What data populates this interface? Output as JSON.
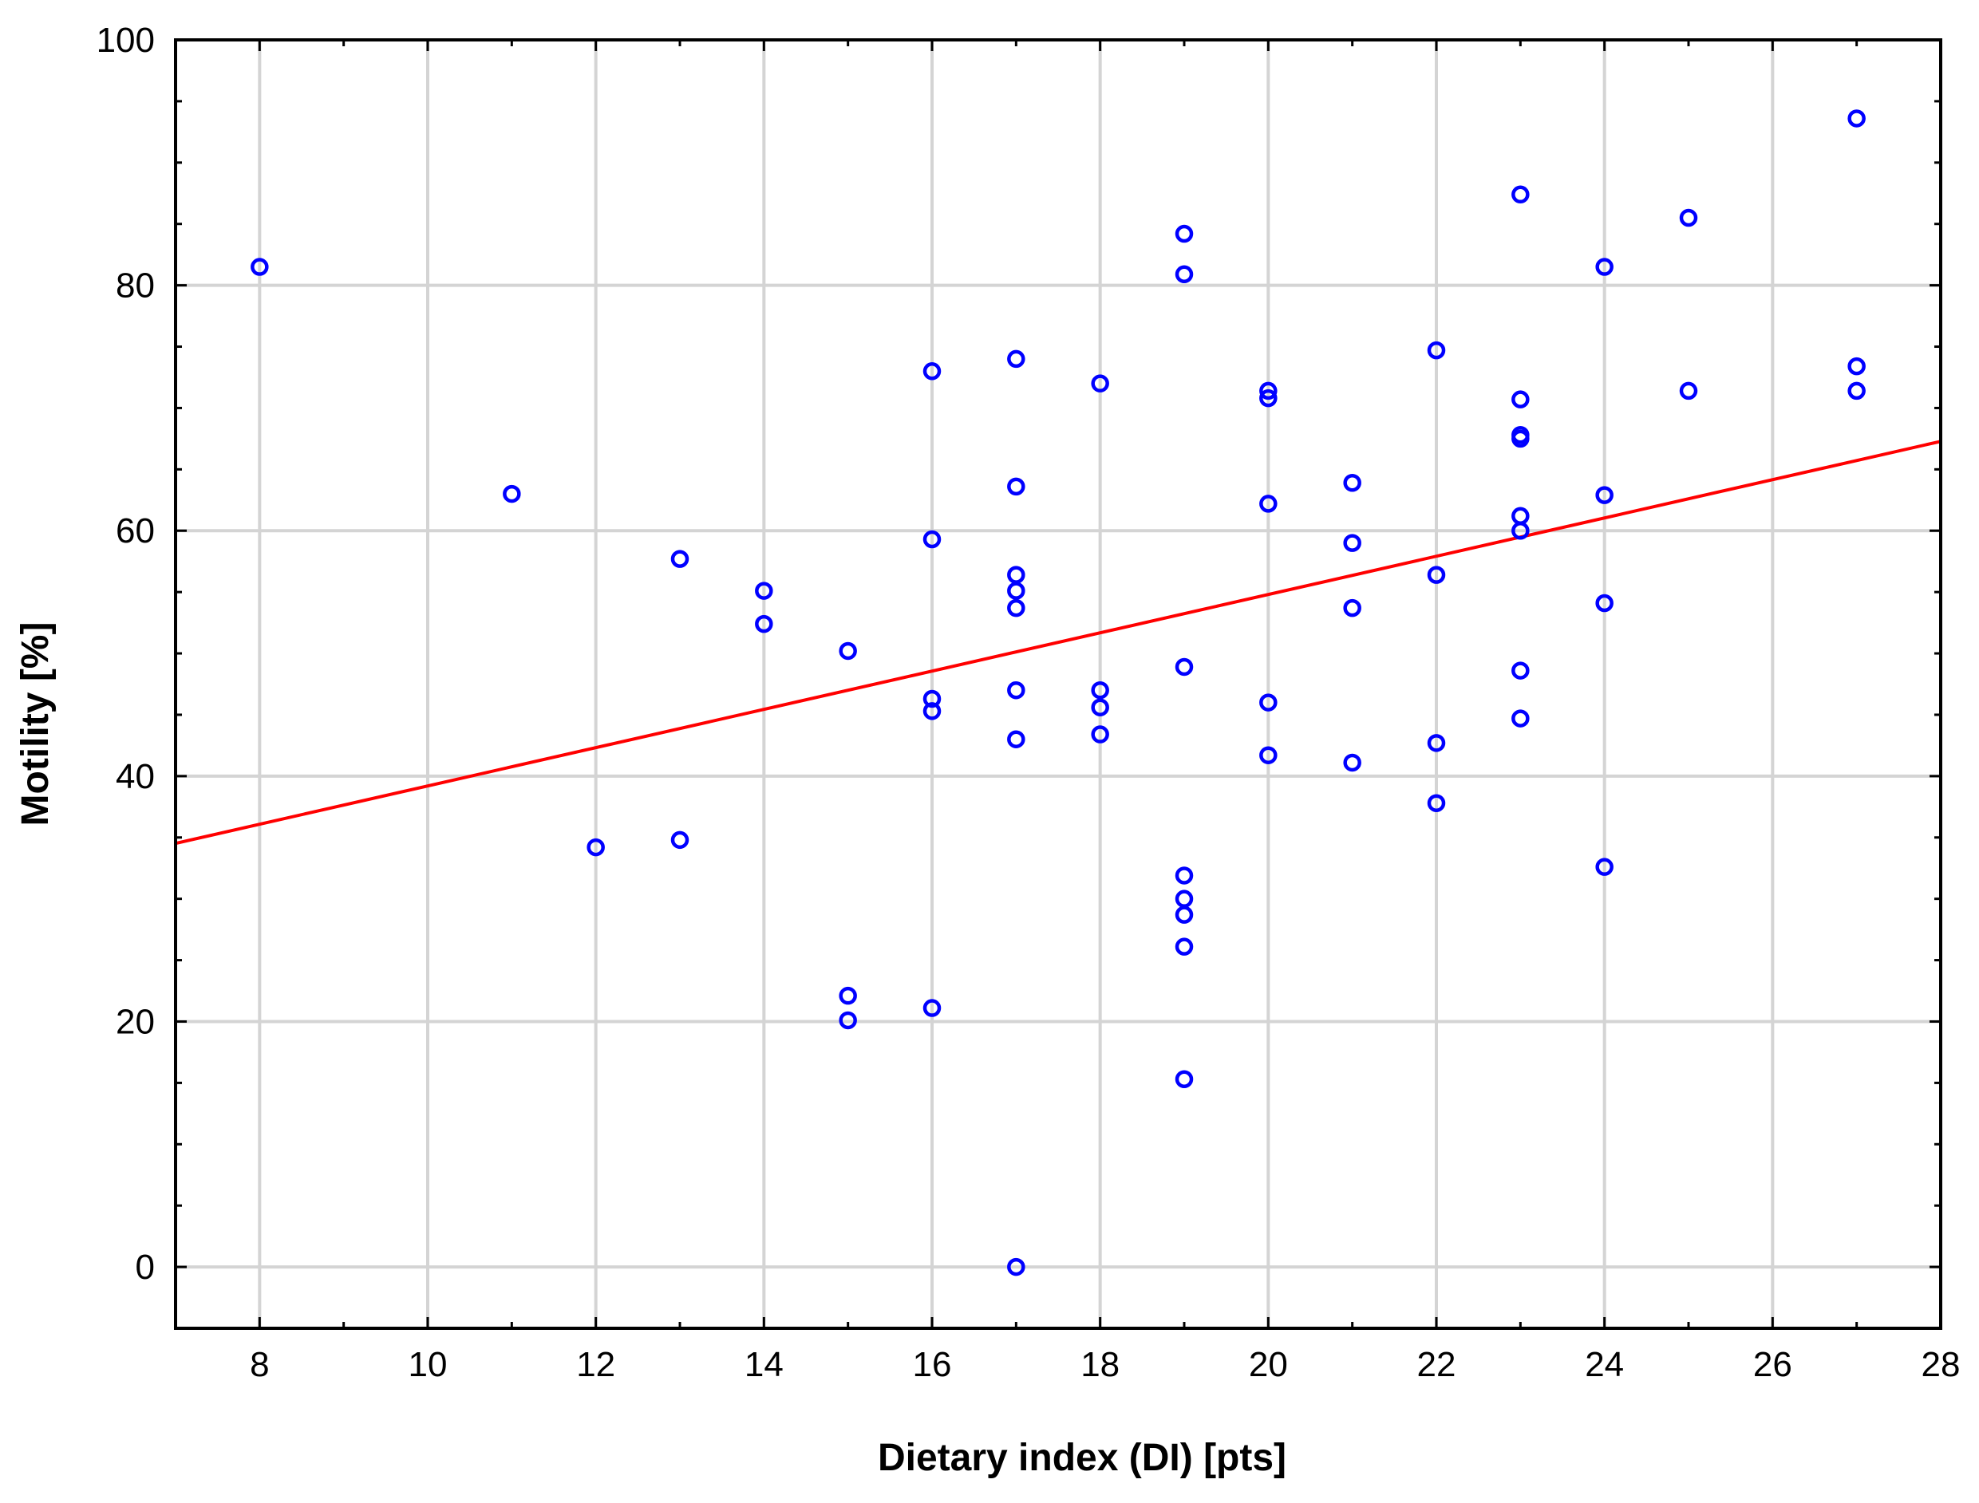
{
  "chart_data": {
    "type": "scatter",
    "title": "",
    "xlabel": "Dietary index (DI) [pts]",
    "ylabel": "Motility [%]",
    "xlim": [
      7,
      28
    ],
    "ylim": [
      -5,
      100
    ],
    "xticks": [
      8,
      10,
      12,
      14,
      16,
      18,
      20,
      22,
      24,
      26,
      28
    ],
    "yticks": [
      0,
      20,
      40,
      60,
      80,
      100
    ],
    "xtick_labels": [
      "8",
      "10",
      "12",
      "14",
      "16",
      "18",
      "20",
      "22",
      "24",
      "26",
      "28"
    ],
    "ytick_labels": [
      "0",
      "20",
      "40",
      "60",
      "80",
      "100"
    ],
    "grid": true,
    "legend": "none",
    "marker_color": "#0000ff",
    "line_color": "#ff0000",
    "series": [
      {
        "marker": "open-circle",
        "points": [
          [
            8,
            81.5
          ],
          [
            11,
            63
          ],
          [
            12,
            34.2
          ],
          [
            13,
            57.7
          ],
          [
            13,
            34.8
          ],
          [
            14,
            55.1
          ],
          [
            14,
            52.4
          ],
          [
            15,
            50.2
          ],
          [
            15,
            22.1
          ],
          [
            15,
            20.1
          ],
          [
            16,
            73
          ],
          [
            16,
            59.3
          ],
          [
            16,
            46.3
          ],
          [
            16,
            45.3
          ],
          [
            16,
            21.1
          ],
          [
            17,
            74
          ],
          [
            17,
            63.6
          ],
          [
            17,
            56.4
          ],
          [
            17,
            55.1
          ],
          [
            17,
            53.7
          ],
          [
            17,
            47
          ],
          [
            17,
            43
          ],
          [
            17,
            0
          ],
          [
            18,
            72
          ],
          [
            18,
            47
          ],
          [
            18,
            45.6
          ],
          [
            18,
            43.4
          ],
          [
            19,
            84.2
          ],
          [
            19,
            80.9
          ],
          [
            19,
            48.9
          ],
          [
            19,
            31.9
          ],
          [
            19,
            30
          ],
          [
            19,
            28.7
          ],
          [
            19,
            26.1
          ],
          [
            19,
            15.3
          ],
          [
            20,
            71.4
          ],
          [
            20,
            70.8
          ],
          [
            20,
            62.2
          ],
          [
            20,
            46
          ],
          [
            20,
            41.7
          ],
          [
            21,
            63.9
          ],
          [
            21,
            59
          ],
          [
            21,
            53.7
          ],
          [
            21,
            41.1
          ],
          [
            22,
            74.7
          ],
          [
            22,
            56.4
          ],
          [
            22,
            42.7
          ],
          [
            22,
            37.8
          ],
          [
            23,
            87.4
          ],
          [
            23,
            70.7
          ],
          [
            23,
            67.8
          ],
          [
            23,
            67.5
          ],
          [
            23,
            61.2
          ],
          [
            23,
            60
          ],
          [
            23,
            48.6
          ],
          [
            23,
            44.7
          ],
          [
            24,
            81.5
          ],
          [
            24,
            62.9
          ],
          [
            24,
            54.1
          ],
          [
            24,
            32.6
          ],
          [
            25,
            85.5
          ],
          [
            25,
            71.4
          ],
          [
            27,
            93.6
          ],
          [
            27,
            73.4
          ],
          [
            27,
            71.4
          ]
        ]
      }
    ],
    "trendline": {
      "type": "linear",
      "slope": 1.56,
      "intercept": 23.6
    }
  }
}
